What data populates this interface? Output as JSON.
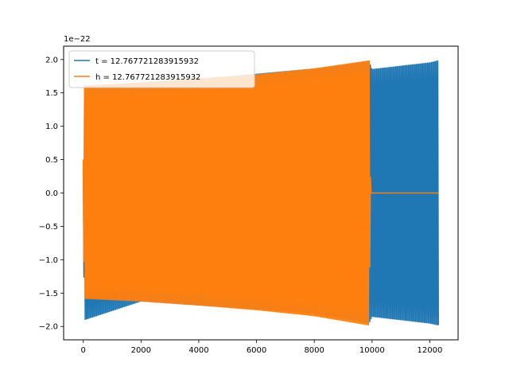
{
  "chart_data": {
    "type": "line",
    "title": "",
    "xlabel": "",
    "ylabel": "",
    "y_offset_text": "1e−22",
    "xlim": [
      -680,
      12980
    ],
    "ylim": [
      -2.2,
      2.2
    ],
    "x_ticks": [
      0,
      2000,
      4000,
      6000,
      8000,
      10000,
      12000
    ],
    "x_tick_labels": [
      "0",
      "2000",
      "4000",
      "6000",
      "8000",
      "10000",
      "12000"
    ],
    "y_ticks": [
      -2.0,
      -1.5,
      -1.0,
      -0.5,
      0.0,
      0.5,
      1.0,
      1.5,
      2.0
    ],
    "y_tick_labels": [
      "−2.0",
      "−1.5",
      "−1.0",
      "−0.5",
      "0.0",
      "0.5",
      "1.0",
      "1.5",
      "2.0"
    ],
    "grid": false,
    "legend_position": "top-left",
    "series": [
      {
        "name": "t = 12.767721283915932",
        "color": "#1f77b4",
        "description": "dense oscillation with slowly growing amplitude",
        "x": [
          0,
          30,
          2000,
          4000,
          6000,
          8000,
          9900,
          10000,
          12000,
          12300
        ],
        "envelope_upper": [
          0.5,
          1.6,
          1.65,
          1.7,
          1.78,
          1.86,
          1.97,
          1.85,
          1.95,
          1.98
        ],
        "envelope_lower": [
          0.5,
          -1.9,
          -1.62,
          -1.68,
          -1.74,
          -1.8,
          -1.95,
          -1.85,
          -1.95,
          -1.98
        ]
      },
      {
        "name": "h = 12.767721283915932",
        "color": "#ff7f0e",
        "description": "dense oscillation with slowly growing amplitude, zero after ~9900",
        "x": [
          0,
          30,
          2000,
          4000,
          6000,
          8000,
          9900,
          9950,
          12300
        ],
        "envelope_upper": [
          0.5,
          1.6,
          1.65,
          1.71,
          1.77,
          1.86,
          1.98,
          0.0,
          0.0
        ],
        "envelope_lower": [
          0.5,
          -1.58,
          -1.62,
          -1.68,
          -1.75,
          -1.84,
          -1.98,
          0.0,
          0.0
        ]
      }
    ]
  }
}
